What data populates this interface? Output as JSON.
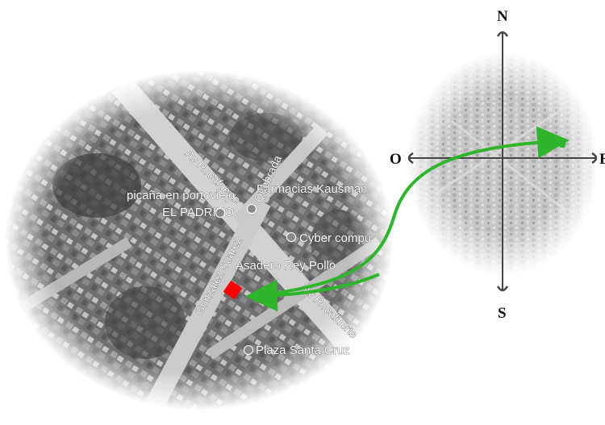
{
  "map_labels": {
    "road_av_rocafuerte_upper": "Av Rocafuerte",
    "road_av_rocafuerte_lower": "Av Rocafuerte",
    "road_quebrada": "Quebrada",
    "road_gonzalez_suarez": "Gonzalez Suarez",
    "farmacias": "Farmacias Kausman",
    "picana": "picaña en portoviejo",
    "el_padrino": "EL PADRINO",
    "cyber": "Cyber compu",
    "asadero": "Asadero Rey Pollo",
    "plaza": "Plaza Santa Cruz"
  },
  "compass": {
    "north": "N",
    "south": "S",
    "west": "O",
    "east": "E"
  },
  "colors": {
    "marker": "#ff0000",
    "arrow": "#2fb52b",
    "axis": "#444444"
  },
  "icons": {
    "place_marker": "place-pin-icon",
    "target_marker": "location-square-icon",
    "arrow": "curved-arrow-icon"
  }
}
